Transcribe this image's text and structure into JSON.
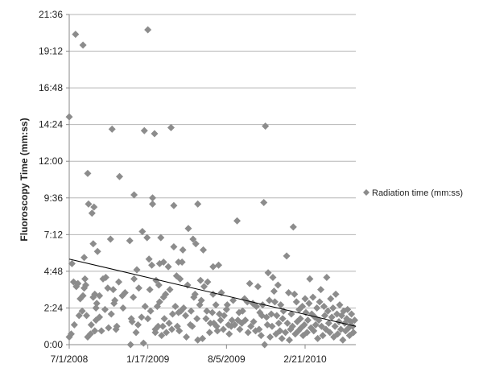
{
  "chart_data": {
    "type": "scatter",
    "title": "",
    "xlabel": "",
    "ylabel": "Fluoroscopy Time (mm:ss)",
    "x_unit": "date",
    "y_unit": "minutes",
    "xlim": [
      "2008-07-01",
      "2010-06-30"
    ],
    "ylim": [
      0,
      21.6
    ],
    "x_ticks": [
      "7/1/2008",
      "1/17/2009",
      "8/5/2009",
      "2/21/2010"
    ],
    "y_ticks": [
      "0:00",
      "2:24",
      "4:48",
      "7:12",
      "9:36",
      "12:00",
      "14:24",
      "16:48",
      "19:12",
      "21:36"
    ],
    "grid": "horizontal",
    "legend": {
      "placement": "right"
    },
    "marker_color": "#8c8c8c",
    "trendline_color": "#000000",
    "trendline": {
      "type": "linear",
      "start": [
        "2008-07-01",
        5.6
      ],
      "end": [
        "2010-06-30",
        1.2
      ]
    },
    "series": [
      {
        "name": "Radiation time (mm:ss)",
        "marker": "diamond",
        "points": [
          [
            "2008-07-01",
            14.9
          ],
          [
            "2008-07-01",
            0.5
          ],
          [
            "2008-07-06",
            0.7
          ],
          [
            "2008-07-08",
            5.3
          ],
          [
            "2008-07-12",
            4.1
          ],
          [
            "2008-07-14",
            1.3
          ],
          [
            "2008-07-17",
            20.3
          ],
          [
            "2008-07-19",
            3.8
          ],
          [
            "2008-07-23",
            4.0
          ],
          [
            "2008-07-26",
            1.9
          ],
          [
            "2008-07-29",
            3.0
          ],
          [
            "2008-08-03",
            2.2
          ],
          [
            "2008-08-05",
            3.2
          ],
          [
            "2008-08-05",
            19.6
          ],
          [
            "2008-08-08",
            3.7
          ],
          [
            "2008-08-08",
            5.7
          ],
          [
            "2008-08-10",
            4.3
          ],
          [
            "2008-08-12",
            3.9
          ],
          [
            "2008-08-14",
            1.9
          ],
          [
            "2008-08-17",
            0.5
          ],
          [
            "2008-08-17",
            11.2
          ],
          [
            "2008-08-19",
            9.2
          ],
          [
            "2008-08-24",
            0.7
          ],
          [
            "2008-08-26",
            1.3
          ],
          [
            "2008-08-28",
            8.6
          ],
          [
            "2008-08-31",
            6.6
          ],
          [
            "2008-08-31",
            3.1
          ],
          [
            "2008-09-02",
            9.0
          ],
          [
            "2008-09-04",
            3.3
          ],
          [
            "2008-09-04",
            0.9
          ],
          [
            "2008-09-07",
            2.4
          ],
          [
            "2008-09-07",
            1.6
          ],
          [
            "2008-09-09",
            2.7
          ],
          [
            "2008-09-11",
            6.1
          ],
          [
            "2008-09-16",
            1.8
          ],
          [
            "2008-09-16",
            3.2
          ],
          [
            "2008-09-21",
            0.9
          ],
          [
            "2008-09-25",
            4.3
          ],
          [
            "2008-09-30",
            2.3
          ],
          [
            "2008-10-02",
            4.4
          ],
          [
            "2008-10-07",
            3.7
          ],
          [
            "2008-10-09",
            1.1
          ],
          [
            "2008-10-14",
            6.9
          ],
          [
            "2008-10-16",
            2.0
          ],
          [
            "2008-10-18",
            14.1
          ],
          [
            "2008-10-21",
            3.6
          ],
          [
            "2008-10-23",
            2.7
          ],
          [
            "2008-10-25",
            2.9
          ],
          [
            "2008-10-28",
            1.0
          ],
          [
            "2008-10-30",
            1.2
          ],
          [
            "2008-11-04",
            4.1
          ],
          [
            "2008-11-06",
            11.0
          ],
          [
            "2008-11-13",
            3.2
          ],
          [
            "2008-11-15",
            2.4
          ],
          [
            "2008-11-20",
            3.4
          ],
          [
            "2008-12-02",
            6.8
          ],
          [
            "2008-12-04",
            0.0
          ],
          [
            "2008-12-06",
            1.7
          ],
          [
            "2008-12-08",
            1.5
          ],
          [
            "2008-12-11",
            3.1
          ],
          [
            "2008-12-13",
            4.3
          ],
          [
            "2008-12-13",
            9.8
          ],
          [
            "2008-12-18",
            0.8
          ],
          [
            "2008-12-20",
            4.9
          ],
          [
            "2008-12-23",
            1.3
          ],
          [
            "2008-12-25",
            3.7
          ],
          [
            "2009-01-01",
            1.8
          ],
          [
            "2009-01-03",
            7.4
          ],
          [
            "2009-01-06",
            0.1
          ],
          [
            "2009-01-08",
            14.0
          ],
          [
            "2009-01-10",
            2.5
          ],
          [
            "2009-01-15",
            7.0
          ],
          [
            "2009-01-17",
            1.7
          ],
          [
            "2009-01-17",
            20.6
          ],
          [
            "2009-01-20",
            5.6
          ],
          [
            "2009-01-22",
            3.6
          ],
          [
            "2009-01-24",
            2.2
          ],
          [
            "2009-01-27",
            5.2
          ],
          [
            "2009-01-29",
            9.6
          ],
          [
            "2009-01-29",
            9.2
          ],
          [
            "2009-02-03",
            13.8
          ],
          [
            "2009-02-05",
            1.0
          ],
          [
            "2009-02-05",
            0.8
          ],
          [
            "2009-02-07",
            4.2
          ],
          [
            "2009-02-10",
            2.5
          ],
          [
            "2009-02-12",
            1.2
          ],
          [
            "2009-02-14",
            3.9
          ],
          [
            "2009-02-16",
            5.3
          ],
          [
            "2009-02-16",
            2.8
          ],
          [
            "2009-02-19",
            7.0
          ],
          [
            "2009-02-21",
            0.6
          ],
          [
            "2009-02-24",
            1.2
          ],
          [
            "2009-02-26",
            3.1
          ],
          [
            "2009-02-26",
            5.4
          ],
          [
            "2009-02-28",
            1.7
          ],
          [
            "2009-03-03",
            3.3
          ],
          [
            "2009-03-05",
            0.8
          ],
          [
            "2009-03-10",
            5.1
          ],
          [
            "2009-03-12",
            1.4
          ],
          [
            "2009-03-14",
            3.6
          ],
          [
            "2009-03-17",
            14.2
          ],
          [
            "2009-03-19",
            1.0
          ],
          [
            "2009-03-21",
            2.0
          ],
          [
            "2009-03-24",
            6.4
          ],
          [
            "2009-03-24",
            9.1
          ],
          [
            "2009-03-28",
            2.5
          ],
          [
            "2009-03-31",
            4.5
          ],
          [
            "2009-04-02",
            1.2
          ],
          [
            "2009-04-05",
            5.4
          ],
          [
            "2009-04-05",
            2.1
          ],
          [
            "2009-04-07",
            0.9
          ],
          [
            "2009-04-09",
            4.3
          ],
          [
            "2009-04-11",
            2.2
          ],
          [
            "2009-04-14",
            5.4
          ],
          [
            "2009-04-16",
            6.2
          ],
          [
            "2009-04-18",
            2.4
          ],
          [
            "2009-04-23",
            1.9
          ],
          [
            "2009-04-25",
            0.5
          ],
          [
            "2009-04-28",
            3.9
          ],
          [
            "2009-04-30",
            7.6
          ],
          [
            "2009-05-05",
            1.3
          ],
          [
            "2009-05-07",
            2.2
          ],
          [
            "2009-05-10",
            1.2
          ],
          [
            "2009-05-12",
            6.9
          ],
          [
            "2009-05-14",
            3.1
          ],
          [
            "2009-05-17",
            3.3
          ],
          [
            "2009-05-19",
            6.6
          ],
          [
            "2009-05-22",
            1.7
          ],
          [
            "2009-05-24",
            9.2
          ],
          [
            "2009-05-24",
            0.3
          ],
          [
            "2009-05-29",
            2.6
          ],
          [
            "2009-05-31",
            4.2
          ],
          [
            "2009-06-02",
            2.9
          ],
          [
            "2009-06-05",
            0.4
          ],
          [
            "2009-06-07",
            6.2
          ],
          [
            "2009-06-09",
            3.8
          ],
          [
            "2009-06-14",
            1.7
          ],
          [
            "2009-06-16",
            2.2
          ],
          [
            "2009-06-18",
            4.1
          ],
          [
            "2009-06-23",
            0.8
          ],
          [
            "2009-06-25",
            1.4
          ],
          [
            "2009-06-30",
            2.1
          ],
          [
            "2009-07-02",
            3.3
          ],
          [
            "2009-07-02",
            5.1
          ],
          [
            "2009-07-04",
            1.4
          ],
          [
            "2009-07-09",
            2.6
          ],
          [
            "2009-07-11",
            1.2
          ],
          [
            "2009-07-13",
            0.9
          ],
          [
            "2009-07-16",
            5.2
          ],
          [
            "2009-07-18",
            2.0
          ],
          [
            "2009-07-21",
            1.6
          ],
          [
            "2009-07-23",
            3.4
          ],
          [
            "2009-07-28",
            1.0
          ],
          [
            "2009-07-30",
            1.9
          ],
          [
            "2009-08-05",
            2.3
          ],
          [
            "2009-08-07",
            2.6
          ],
          [
            "2009-08-10",
            1.3
          ],
          [
            "2009-08-12",
            0.7
          ],
          [
            "2009-08-17",
            1.2
          ],
          [
            "2009-08-19",
            1.6
          ],
          [
            "2009-08-22",
            2.9
          ],
          [
            "2009-08-26",
            1.3
          ],
          [
            "2009-09-01",
            8.1
          ],
          [
            "2009-09-03",
            1.6
          ],
          [
            "2009-09-06",
            2.1
          ],
          [
            "2009-09-08",
            1.0
          ],
          [
            "2009-09-13",
            1.4
          ],
          [
            "2009-09-15",
            2.2
          ],
          [
            "2009-09-20",
            3.0
          ],
          [
            "2009-09-22",
            1.6
          ],
          [
            "2009-09-27",
            2.8
          ],
          [
            "2009-09-29",
            0.8
          ],
          [
            "2009-10-03",
            4.0
          ],
          [
            "2009-10-06",
            1.2
          ],
          [
            "2009-10-11",
            2.7
          ],
          [
            "2009-10-13",
            1.5
          ],
          [
            "2009-10-18",
            0.9
          ],
          [
            "2009-10-20",
            2.5
          ],
          [
            "2009-10-24",
            3.8
          ],
          [
            "2009-10-27",
            1.0
          ],
          [
            "2009-10-29",
            2.1
          ],
          [
            "2009-11-01",
            0.6
          ],
          [
            "2009-11-03",
            1.9
          ],
          [
            "2009-11-05",
            2.6
          ],
          [
            "2009-11-08",
            9.3
          ],
          [
            "2009-11-10",
            0.0
          ],
          [
            "2009-11-12",
            14.3
          ],
          [
            "2009-11-15",
            1.8
          ],
          [
            "2009-11-17",
            1.3
          ],
          [
            "2009-11-19",
            4.7
          ],
          [
            "2009-11-22",
            2.9
          ],
          [
            "2009-11-24",
            0.5
          ],
          [
            "2009-11-27",
            2.0
          ],
          [
            "2009-11-29",
            1.2
          ],
          [
            "2009-12-01",
            4.4
          ],
          [
            "2009-12-04",
            3.5
          ],
          [
            "2009-12-06",
            2.8
          ],
          [
            "2009-12-09",
            0.7
          ],
          [
            "2009-12-11",
            1.9
          ],
          [
            "2009-12-14",
            3.9
          ],
          [
            "2009-12-16",
            1.4
          ],
          [
            "2009-12-19",
            0.9
          ],
          [
            "2009-12-21",
            2.6
          ],
          [
            "2009-12-24",
            0.4
          ],
          [
            "2009-12-26",
            1.7
          ],
          [
            "2009-12-28",
            2.2
          ],
          [
            "2010-01-02",
            0.8
          ],
          [
            "2010-01-05",
            5.8
          ],
          [
            "2010-01-07",
            1.4
          ],
          [
            "2010-01-10",
            3.4
          ],
          [
            "2010-01-12",
            0.3
          ],
          [
            "2010-01-15",
            1.0
          ],
          [
            "2010-01-17",
            2.0
          ],
          [
            "2010-01-20",
            1.2
          ],
          [
            "2010-01-22",
            7.7
          ],
          [
            "2010-01-25",
            3.3
          ],
          [
            "2010-01-27",
            0.7
          ],
          [
            "2010-01-30",
            2.8
          ],
          [
            "2010-02-01",
            1.5
          ],
          [
            "2010-02-04",
            0.9
          ],
          [
            "2010-02-06",
            2.3
          ],
          [
            "2010-02-09",
            1.7
          ],
          [
            "2010-02-11",
            1.1
          ],
          [
            "2010-02-14",
            2.5
          ],
          [
            "2010-02-16",
            0.6
          ],
          [
            "2010-02-19",
            1.3
          ],
          [
            "2010-02-21",
            3.0
          ],
          [
            "2010-02-23",
            2.1
          ],
          [
            "2010-02-26",
            0.8
          ],
          [
            "2010-02-28",
            1.6
          ],
          [
            "2010-03-03",
            2.7
          ],
          [
            "2010-03-05",
            4.3
          ],
          [
            "2010-03-08",
            1.1
          ],
          [
            "2010-03-10",
            2.0
          ],
          [
            "2010-03-13",
            3.1
          ],
          [
            "2010-03-15",
            0.9
          ],
          [
            "2010-03-18",
            1.8
          ],
          [
            "2010-03-20",
            1.3
          ],
          [
            "2010-03-23",
            2.4
          ],
          [
            "2010-03-25",
            0.4
          ],
          [
            "2010-03-28",
            1.6
          ],
          [
            "2010-03-30",
            2.8
          ],
          [
            "2010-04-02",
            3.6
          ],
          [
            "2010-04-04",
            1.2
          ],
          [
            "2010-04-07",
            0.6
          ],
          [
            "2010-04-10",
            2.5
          ],
          [
            "2010-04-12",
            1.9
          ],
          [
            "2010-04-15",
            1.0
          ],
          [
            "2010-04-17",
            4.4
          ],
          [
            "2010-04-20",
            2.2
          ],
          [
            "2010-04-22",
            1.4
          ],
          [
            "2010-04-25",
            0.8
          ],
          [
            "2010-04-27",
            3.0
          ],
          [
            "2010-04-30",
            1.8
          ],
          [
            "2010-05-03",
            2.4
          ],
          [
            "2010-05-05",
            0.5
          ],
          [
            "2010-05-08",
            1.2
          ],
          [
            "2010-05-10",
            3.3
          ],
          [
            "2010-05-13",
            2.0
          ],
          [
            "2010-05-15",
            0.7
          ],
          [
            "2010-05-18",
            1.5
          ],
          [
            "2010-05-20",
            2.6
          ],
          [
            "2010-05-23",
            1.0
          ],
          [
            "2010-05-25",
            1.9
          ],
          [
            "2010-05-28",
            0.3
          ],
          [
            "2010-05-30",
            2.2
          ],
          [
            "2010-06-02",
            1.4
          ],
          [
            "2010-06-04",
            0.9
          ],
          [
            "2010-06-07",
            1.7
          ],
          [
            "2010-06-09",
            2.3
          ],
          [
            "2010-06-12",
            1.1
          ],
          [
            "2010-06-14",
            0.6
          ],
          [
            "2010-06-17",
            1.5
          ],
          [
            "2010-06-19",
            2.0
          ],
          [
            "2010-06-22",
            1.2
          ],
          [
            "2010-06-24",
            0.8
          ],
          [
            "2010-06-27",
            1.6
          ]
        ]
      }
    ]
  }
}
